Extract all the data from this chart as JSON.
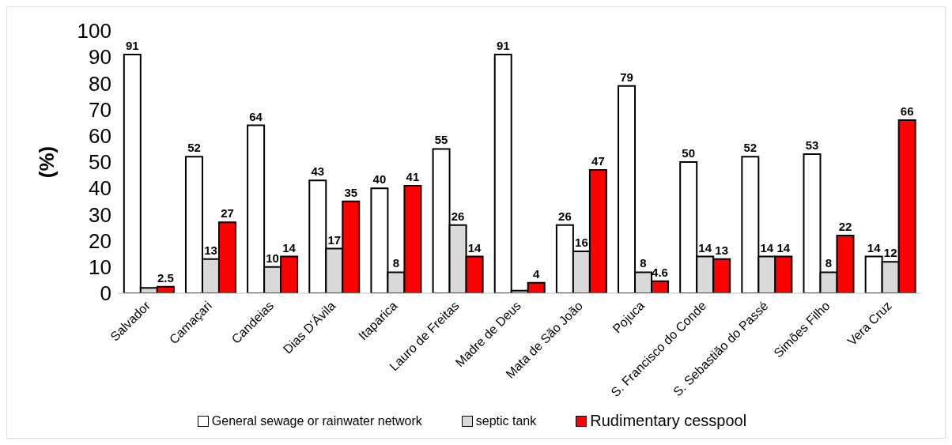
{
  "chart_data": {
    "type": "bar",
    "ylabel": "(%)",
    "categories": [
      "Salvador",
      "Camaçari",
      "Candeias",
      "Dias D'Ávila",
      "Itaparica",
      "Lauro de Freitas",
      "Madre de Deus",
      "Mata de São João",
      "Pojuca",
      "S. Francisco do Conde",
      "S. Sebastião do Passé",
      "Simões Filho",
      "Vera Cruz"
    ],
    "series": [
      {
        "name": "General sewage or rainwater network",
        "color": "#ffffff",
        "values": [
          91,
          52,
          64,
          43,
          40,
          55,
          91,
          26,
          79,
          50,
          52,
          53,
          14
        ],
        "value_labels": [
          "91",
          "52",
          "64",
          "43",
          "40",
          "55",
          "91",
          "26",
          "79",
          "50",
          "52",
          "53",
          "14"
        ]
      },
      {
        "name": "septic tank",
        "color": "#d9d9d9",
        "values": [
          2,
          13,
          10,
          17,
          8,
          26,
          1,
          16,
          8,
          14,
          14,
          8,
          12
        ],
        "value_labels": [
          null,
          "13",
          "10",
          "17",
          "8",
          "26",
          null,
          "16",
          "8",
          "14",
          "14",
          "8",
          "12"
        ]
      },
      {
        "name": "Rudimentary cesspool",
        "color": "#ff0000",
        "values": [
          2.5,
          27,
          14,
          35,
          41,
          14,
          4,
          47,
          4.6,
          13,
          14,
          22,
          66
        ],
        "value_labels": [
          "2.5",
          "27",
          "14",
          "35",
          "41",
          "14",
          "4",
          "47",
          "4.6",
          "13",
          "14",
          "22",
          "66"
        ]
      }
    ],
    "ylim": [
      0,
      100
    ],
    "yticks": [
      0,
      10,
      20,
      30,
      40,
      50,
      60,
      70,
      80,
      90,
      100
    ],
    "grid": false,
    "legend": "bottom"
  }
}
